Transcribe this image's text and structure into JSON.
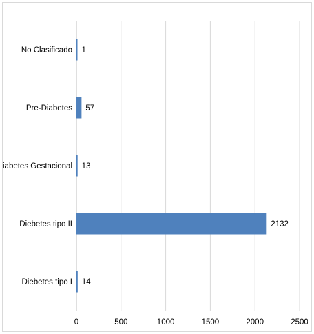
{
  "chart_data": {
    "type": "bar",
    "orientation": "horizontal",
    "title": "",
    "xlabel": "",
    "ylabel": "",
    "categories": [
      "No Clasificado",
      "Pre-Diabetes",
      "Diabetes Gestacional",
      "Diebetes tipo II",
      "Diebetes tipo I"
    ],
    "values": [
      1,
      57,
      13,
      2132,
      14
    ],
    "xlim": [
      0,
      2500
    ],
    "x_ticks": [
      "0",
      "500",
      "1000",
      "1500",
      "2000",
      "2500"
    ],
    "grid": true,
    "legend": "none",
    "bar_color": "#4f81bd",
    "grid_color": "#d9d9d9"
  }
}
